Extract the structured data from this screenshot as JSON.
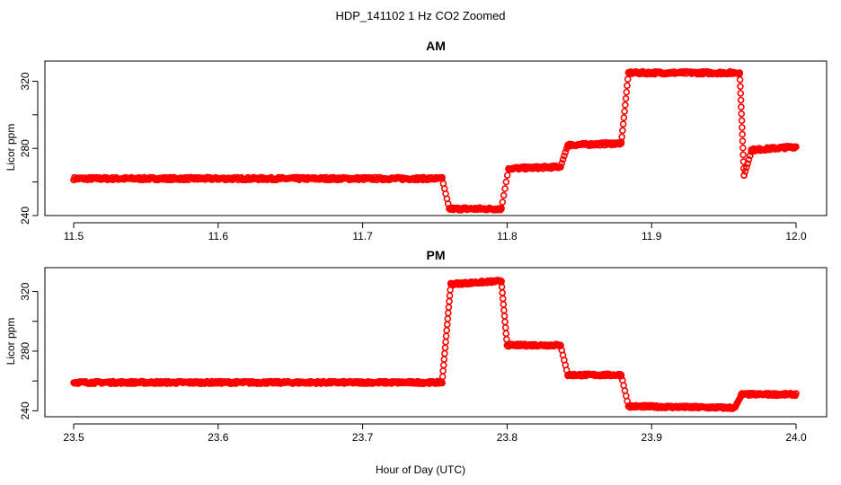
{
  "figure": {
    "title": "HDP_141102  1 Hz CO2 Zoomed",
    "xlabel": "Hour of Day (UTC)",
    "point_color": "#ff0000"
  },
  "chart_data": [
    {
      "type": "scatter",
      "title": "AM",
      "xlabel": "",
      "ylabel": "Licor ppm",
      "xlim": [
        11.5,
        12.0
      ],
      "ylim": [
        240,
        332
      ],
      "x_ticks": [
        "11.5",
        "11.6",
        "11.7",
        "11.8",
        "11.9",
        "12.0"
      ],
      "y_ticks": [
        "240",
        "280",
        "320"
      ],
      "y_minor_ticks": [
        260,
        300
      ],
      "grid": false,
      "legend": "none",
      "series": [
        {
          "name": "",
          "segments": [
            {
              "x_start": 11.5,
              "x_end": 11.755,
              "y_start": 262,
              "y_end": 262
            },
            {
              "x_start": 11.755,
              "x_end": 11.76,
              "y_start": 262,
              "y_end": 244
            },
            {
              "x_start": 11.76,
              "x_end": 11.796,
              "y_start": 244,
              "y_end": 244
            },
            {
              "x_start": 11.796,
              "x_end": 11.801,
              "y_start": 244,
              "y_end": 268
            },
            {
              "x_start": 11.801,
              "x_end": 11.837,
              "y_start": 268,
              "y_end": 269
            },
            {
              "x_start": 11.837,
              "x_end": 11.842,
              "y_start": 269,
              "y_end": 282
            },
            {
              "x_start": 11.842,
              "x_end": 11.879,
              "y_start": 282,
              "y_end": 283
            },
            {
              "x_start": 11.879,
              "x_end": 11.884,
              "y_start": 283,
              "y_end": 325
            },
            {
              "x_start": 11.884,
              "x_end": 11.961,
              "y_start": 325,
              "y_end": 325
            },
            {
              "x_start": 11.961,
              "x_end": 11.964,
              "y_start": 325,
              "y_end": 264
            },
            {
              "x_start": 11.964,
              "x_end": 11.969,
              "y_start": 264,
              "y_end": 278
            },
            {
              "x_start": 11.969,
              "x_end": 12.0,
              "y_start": 279,
              "y_end": 281
            }
          ]
        }
      ]
    },
    {
      "type": "scatter",
      "title": "PM",
      "xlabel": "",
      "ylabel": "Licor ppm",
      "xlim": [
        23.5,
        24.0
      ],
      "ylim": [
        236,
        336
      ],
      "x_ticks": [
        "23.5",
        "23.6",
        "23.7",
        "23.8",
        "23.9",
        "24.0"
      ],
      "y_ticks": [
        "240",
        "280",
        "320"
      ],
      "y_minor_ticks": [
        260,
        300
      ],
      "grid": false,
      "legend": "none",
      "series": [
        {
          "name": "",
          "segments": [
            {
              "x_start": 23.5,
              "x_end": 23.755,
              "y_start": 259,
              "y_end": 259
            },
            {
              "x_start": 23.755,
              "x_end": 23.761,
              "y_start": 259,
              "y_end": 325
            },
            {
              "x_start": 23.761,
              "x_end": 23.796,
              "y_start": 325,
              "y_end": 327
            },
            {
              "x_start": 23.796,
              "x_end": 23.8,
              "y_start": 327,
              "y_end": 284
            },
            {
              "x_start": 23.8,
              "x_end": 23.837,
              "y_start": 284,
              "y_end": 284
            },
            {
              "x_start": 23.837,
              "x_end": 23.842,
              "y_start": 284,
              "y_end": 264
            },
            {
              "x_start": 23.842,
              "x_end": 23.879,
              "y_start": 264,
              "y_end": 264
            },
            {
              "x_start": 23.879,
              "x_end": 23.884,
              "y_start": 264,
              "y_end": 243
            },
            {
              "x_start": 23.884,
              "x_end": 23.958,
              "y_start": 243,
              "y_end": 242
            },
            {
              "x_start": 23.958,
              "x_end": 23.962,
              "y_start": 243,
              "y_end": 250
            },
            {
              "x_start": 23.962,
              "x_end": 24.0,
              "y_start": 251,
              "y_end": 251
            }
          ]
        }
      ]
    }
  ]
}
